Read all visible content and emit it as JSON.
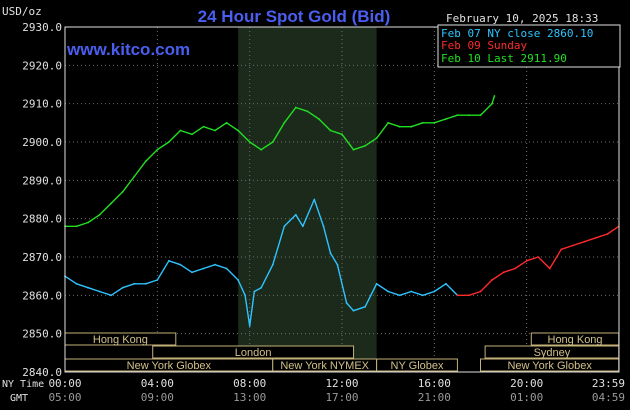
{
  "title": "24 Hour Spot Gold (Bid)",
  "unit_label": "USD/oz",
  "website": "www.kitco.com",
  "timestamp": "February 10, 2025 18:33",
  "colors": {
    "background": "#000000",
    "title": "#4a5ef0",
    "website": "#4a5ef0",
    "axis": "#e0e0e0",
    "grid": "#6e6e6e",
    "shade": "#1b2a1b",
    "session_fill": "#000000",
    "session_border": "#c4b27a",
    "session_text": "#d2c08a"
  },
  "legend": [
    {
      "label": "Feb 07 NY close 2860.10",
      "color": "#2ec4ff"
    },
    {
      "label": "Feb 09 Sunday",
      "color": "#ff2a2a"
    },
    {
      "label": "Feb 10 Last 2911.90",
      "color": "#21e021"
    }
  ],
  "time_rows": {
    "ny_label": "NY Time",
    "gmt_label": "GMT",
    "ny_ticks": [
      "00:00",
      "04:00",
      "08:00",
      "12:00",
      "16:00",
      "20:00",
      "23:59"
    ],
    "gmt_ticks": [
      "05:00",
      "09:00",
      "13:00",
      "17:00",
      "21:00",
      "01:00",
      "04:59"
    ]
  },
  "sessions": [
    {
      "label": "Hong Kong",
      "start": 0,
      "end": 4.8,
      "row": 0
    },
    {
      "label": "London",
      "start": 3.8,
      "end": 12.5,
      "row": 1
    },
    {
      "label": "New York Globex",
      "start": 0,
      "end": 9.0,
      "row": 2
    },
    {
      "label": "New York NYMEX",
      "start": 9.0,
      "end": 13.5,
      "row": 2
    },
    {
      "label": "NY Globex",
      "start": 13.5,
      "end": 17.0,
      "row": 2
    },
    {
      "label": "Hong Kong",
      "start": 20.2,
      "end": 23.99,
      "row": 0
    },
    {
      "label": "Sydney",
      "start": 18.2,
      "end": 23.99,
      "row": 1
    },
    {
      "label": "New York Globex",
      "start": 18.0,
      "end": 23.99,
      "row": 2
    }
  ],
  "chart_data": {
    "type": "line",
    "title": "24 Hour Spot Gold (Bid)",
    "ylabel": "USD/oz",
    "xlabel": "",
    "xlim": [
      0,
      24
    ],
    "ylim": [
      2840,
      2930
    ],
    "yticks": [
      "2930.0",
      "2920.0",
      "2910.0",
      "2900.0",
      "2890.0",
      "2880.0",
      "2870.0",
      "2860.0",
      "2850.0",
      "2840.0"
    ],
    "grid": true,
    "shaded_period": [
      7.5,
      13.5
    ],
    "series": [
      {
        "name": "Feb 07 NY close 2860.10",
        "color": "#2ec4ff",
        "x": [
          0.0,
          0.5,
          1.0,
          1.5,
          2.0,
          2.5,
          3.0,
          3.5,
          4.0,
          4.5,
          5.0,
          5.5,
          6.0,
          6.5,
          7.0,
          7.5,
          7.8,
          8.0,
          8.2,
          8.5,
          9.0,
          9.5,
          10.0,
          10.3,
          10.8,
          11.2,
          11.5,
          11.8,
          12.2,
          12.5,
          13.0,
          13.5,
          14.0,
          14.5,
          15.0,
          15.5,
          16.0,
          16.5,
          17.0
        ],
        "y": [
          2865,
          2863,
          2862,
          2861,
          2860,
          2862,
          2863,
          2863,
          2864,
          2869,
          2868,
          2866,
          2867,
          2868,
          2867,
          2864,
          2860,
          2852,
          2861,
          2862,
          2868,
          2878,
          2881,
          2878,
          2885,
          2878,
          2871,
          2868,
          2858,
          2856,
          2857,
          2863,
          2861,
          2860,
          2861,
          2860,
          2861,
          2863,
          2860
        ]
      },
      {
        "name": "Feb 09 Sunday",
        "color": "#ff2a2a",
        "x": [
          17.0,
          17.5,
          18.0,
          18.5,
          19.0,
          19.5,
          20.0,
          20.5,
          21.0,
          21.5,
          22.0,
          22.5,
          23.0,
          23.5,
          23.99
        ],
        "y": [
          2860,
          2860,
          2861,
          2864,
          2866,
          2867,
          2869,
          2870,
          2867,
          2872,
          2873,
          2874,
          2875,
          2876,
          2878
        ]
      },
      {
        "name": "Feb 10 Last 2911.90",
        "color": "#21e021",
        "x": [
          0.0,
          0.5,
          1.0,
          1.5,
          2.0,
          2.5,
          3.0,
          3.5,
          4.0,
          4.5,
          5.0,
          5.5,
          6.0,
          6.5,
          7.0,
          7.5,
          8.0,
          8.5,
          9.0,
          9.5,
          10.0,
          10.5,
          11.0,
          11.5,
          12.0,
          12.5,
          13.0,
          13.5,
          14.0,
          14.5,
          15.0,
          15.5,
          16.0,
          16.5,
          17.0,
          17.5,
          18.0,
          18.5,
          18.6
        ],
        "y": [
          2878,
          2878,
          2879,
          2881,
          2884,
          2887,
          2891,
          2895,
          2898,
          2900,
          2903,
          2902,
          2904,
          2903,
          2905,
          2903,
          2900,
          2898,
          2900,
          2905,
          2909,
          2908,
          2906,
          2903,
          2902,
          2898,
          2899,
          2901,
          2905,
          2904,
          2904,
          2905,
          2905,
          2906,
          2907,
          2907,
          2907,
          2910,
          2912
        ]
      }
    ]
  }
}
